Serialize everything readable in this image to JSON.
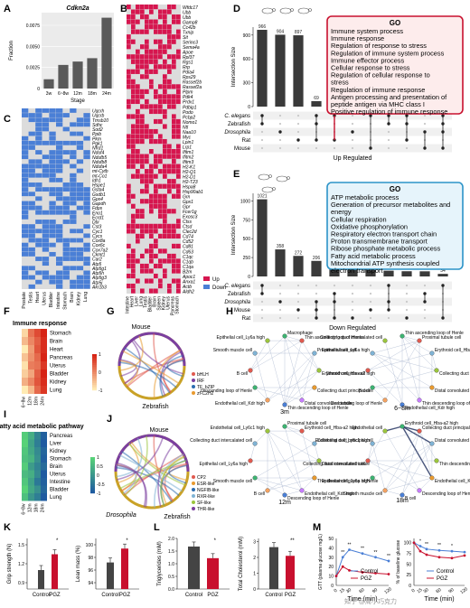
{
  "panel_labels": [
    "A",
    "B",
    "C",
    "D",
    "E",
    "F",
    "G",
    "H",
    "I",
    "J",
    "K",
    "L",
    "M"
  ],
  "panelA": {
    "chart_data": {
      "type": "bar",
      "title": "Cdkn2a",
      "categories": [
        "3w",
        "6~8w",
        "12m",
        "18m",
        "24m"
      ],
      "values": [
        0.0011,
        0.0028,
        0.0032,
        0.0036,
        0.0084
      ],
      "ylabel": "Fraction",
      "xlabel": "Stage",
      "ylim": [
        0,
        0.009
      ]
    },
    "yticks": [
      "0",
      "0.0025",
      "0.0050",
      "0.0075"
    ]
  },
  "panelB": {
    "genes": [
      "Wfdc17",
      "Ubb",
      "Ubb",
      "Gamp8",
      "Cc42b",
      "Txnip",
      "Sit",
      "Serinc3",
      "Sema4a",
      "Apoe",
      "Rpl37",
      "Rgs1",
      "Rrp",
      "Pdia4",
      "Rps29",
      "Rassef2b",
      "Rassef2a",
      "Plpm",
      "Pdk4",
      "Prdx1",
      "Pdbip1",
      "Podo",
      "Pcbp2",
      "Nomo1",
      "Ntl",
      "Naa10",
      "Myc",
      "Lpin1",
      "Lrp1",
      "Ifitm1",
      "Ifitm2",
      "Ifitm3",
      "H2-K1",
      "H2-Q1",
      "H2-D1",
      "H2-T23",
      "Hspa8",
      "Hsp90ab1",
      "Grn",
      "Gpx1",
      "Gpr",
      "Fcer1g",
      "Exosc3",
      "Ctss",
      "Ctsd",
      "Clec2d",
      "Cd74",
      "Cd52",
      "Cd81",
      "Cd63",
      "C1qc",
      "C1qb",
      "C1qa",
      "B2m",
      "Apoc1",
      "Anxa1",
      "Actb",
      "Aldh2"
    ],
    "samples": [
      "Intestine",
      "Heart",
      "Liver",
      "Lung",
      "Testis",
      "Bladder",
      "Brain",
      "Spleen",
      "Kidney",
      "Uterus",
      "Pancreas",
      "Stomach"
    ],
    "legend": [
      "Up",
      "Down"
    ]
  },
  "panelC": {
    "genes": [
      "Uqcrh",
      "Uqcrb",
      "Tmsb10",
      "Sdhc",
      "Sod2",
      "Ppib",
      "Pkm",
      "Pgk1",
      "Nfrd1",
      "Nduf4",
      "Ndufb5",
      "Ndufb8",
      "Ndufa4",
      "mt-Cytb",
      "mt-Co1",
      "Idh1",
      "Hspe1",
      "Gsta4",
      "Gsdb1",
      "Gpx4",
      "Gapdh",
      "Fdps",
      "Eno1",
      "Ecrd1",
      "Dbi",
      "Cst3",
      "Cyc1",
      "Cycs",
      "Cox8a",
      "Cox6c",
      "Cox7a2",
      "Ckmt1",
      "Car2",
      "Atp5",
      "Atp5g1",
      "Atp5h",
      "Atp5g3",
      "Atp5j",
      "Akr1b3"
    ],
    "samples": [
      "Prostate",
      "Testis",
      "Heart",
      "Uterus",
      "Bladder",
      "Intestine",
      "Stomach",
      "Brain",
      "Kidney",
      "Lung"
    ]
  },
  "panelD": {
    "chart_data": {
      "type": "bar",
      "categories": [
        "1",
        "2",
        "3",
        "4",
        "5",
        "6",
        "7",
        "8",
        "9",
        "10",
        "11"
      ],
      "values": [
        966,
        904,
        897,
        69,
        39,
        33,
        21,
        19,
        15,
        14,
        10
      ],
      "ylabel": "Intersection Size",
      "xlabel": "Up Regulated",
      "ylim": [
        0,
        1000
      ]
    },
    "value_labels": [
      "966",
      "904",
      "897",
      "69",
      "39",
      "33",
      "21",
      "19",
      "15",
      "14",
      "10"
    ],
    "yticks": [
      "0",
      "300",
      "600",
      "900"
    ],
    "sets": [
      "C. elegans",
      "Zebrafish",
      "Drosophila",
      "Rat",
      "Mouse"
    ],
    "go_title": "GO",
    "go_terms": [
      "Immune system process",
      "Immune response",
      "Regulation of response to stress",
      "Regulation of immune system process",
      "Immune effector process",
      "Cellular response to stress",
      "Regulation of cellular response to stress",
      "Regulation of immune response",
      "Antigen processing and presentation of peptide antigen via MHC class I",
      "Positive regulation of immune response"
    ]
  },
  "panelE": {
    "chart_data": {
      "type": "bar",
      "categories": [
        "1",
        "2",
        "3",
        "4",
        "5",
        "6",
        "7",
        "8",
        "9",
        "10",
        "11"
      ],
      "values": [
        1021,
        358,
        272,
        206,
        126,
        100,
        86,
        76,
        69,
        68,
        34
      ],
      "ylabel": "Intersection Size",
      "xlabel": "Down Regulated",
      "ylim": [
        0,
        1100
      ]
    },
    "value_labels": [
      "1021",
      "358",
      "272",
      "206",
      "126",
      "100",
      "86",
      "76",
      "69",
      "68",
      "34"
    ],
    "yticks": [
      "0",
      "250",
      "500",
      "750",
      "1000"
    ],
    "sets": [
      "C. elegans",
      "Zebrafish",
      "Drosophila",
      "Mouse",
      "Rat"
    ],
    "go_title": "GO",
    "go_terms": [
      "ATP metabolic process",
      "Generation of precursor metabolites and energy",
      "Cellular respiration",
      "Oxidative phosphorylation",
      "Respiratory electron transport chain",
      "Proton transmembrane transport",
      "Ribose phosphate metabolic process",
      "Fatty acid metabolic process",
      "Mitochondrial ATP synthesis coupled electron transport"
    ]
  },
  "panelF": {
    "title": "Immune response",
    "rows": [
      "Stomach",
      "Brain",
      "Heart",
      "Pancreas",
      "Uterus",
      "Bladder",
      "Kidney",
      "Lung"
    ],
    "cols": [
      "6~8w",
      "12m",
      "18m",
      "24m"
    ],
    "scale": [
      "1",
      "0",
      "-1"
    ],
    "chart_data": {
      "type": "heatmap",
      "rows": [
        "Stomach",
        "Brain",
        "Heart",
        "Pancreas",
        "Uterus",
        "Bladder",
        "Kidney",
        "Lung"
      ],
      "cols": [
        "6~8w",
        "12m",
        "18m",
        "24m"
      ],
      "values": [
        [
          -0.8,
          0.2,
          0.6,
          1.0
        ],
        [
          -0.5,
          0.0,
          0.4,
          0.9
        ],
        [
          -1.0,
          -0.2,
          0.5,
          0.9
        ],
        [
          -0.6,
          -0.1,
          0.3,
          1.0
        ],
        [
          -0.9,
          0.1,
          0.2,
          0.8
        ],
        [
          -0.7,
          -0.3,
          0.4,
          1.0
        ],
        [
          -0.4,
          0.0,
          0.5,
          0.9
        ],
        [
          -1.0,
          -0.5,
          0.3,
          0.8
        ]
      ]
    }
  },
  "panelG": {
    "organisms": [
      "Mouse",
      "Zebrafish"
    ],
    "legend": [
      "bHLH",
      "IRF",
      "TF_bZIP",
      "zf-C2H2"
    ],
    "legend_colors": [
      "#e05a4f",
      "#7b3fa0",
      "#2b6cb0",
      "#e89a2f"
    ]
  },
  "panelH": {
    "stages": [
      "3m",
      "6~8m",
      "12m",
      "18m"
    ],
    "nodes": [
      "Macrophage",
      "Thin ascending loop of Henle",
      "Proximal tubule cell",
      "Erythroid cell_Hba-a2 high",
      "Collecting duct principal cell",
      "Distal convoluted tubule",
      "Thin descending loop of Henle",
      "Endothelial cell_Kdr high",
      "Descending loop of Henle",
      "B cell",
      "Smooth muscle cell",
      "Epithelial cell_Ly6a high",
      "Collecting duct intercalated cell",
      "Endothelial cell_Ly6c1 high",
      "Endothelial cell"
    ]
  },
  "panelI": {
    "title": "Fatty acid metabolic pathway",
    "rows": [
      "Pancreas",
      "Liver",
      "Kidney",
      "Stomach",
      "Brain",
      "Uterus",
      "Intestine",
      "Bladder",
      "Lung"
    ],
    "cols": [
      "6~8w",
      "12m",
      "18m",
      "24m"
    ],
    "scale": [
      "1",
      "0.5",
      "0",
      "-0.5",
      "-1"
    ],
    "chart_data": {
      "type": "heatmap",
      "rows": [
        "Pancreas",
        "Liver",
        "Kidney",
        "Stomach",
        "Brain",
        "Uterus",
        "Intestine",
        "Bladder",
        "Lung"
      ],
      "cols": [
        "6~8w",
        "12m",
        "18m",
        "24m"
      ],
      "values": [
        [
          0.9,
          0.4,
          -0.3,
          -0.9
        ],
        [
          1.0,
          0.2,
          -0.4,
          -1.0
        ],
        [
          0.8,
          0.3,
          -0.2,
          -0.8
        ],
        [
          0.7,
          0.5,
          -0.1,
          -0.9
        ],
        [
          0.9,
          0.1,
          -0.3,
          -0.7
        ],
        [
          0.6,
          0.4,
          -0.2,
          -1.0
        ],
        [
          0.8,
          0.2,
          -0.5,
          -0.9
        ],
        [
          1.0,
          0.3,
          -0.1,
          -0.8
        ],
        [
          0.7,
          0.0,
          -0.4,
          -1.0
        ]
      ]
    }
  },
  "panelJ": {
    "organisms": [
      "Mouse",
      "Drosophila",
      "Zebrafish"
    ],
    "legend": [
      "CP2",
      "ESR-like",
      "NGFIB-like",
      "RXR-like",
      "SF-like",
      "THR-like"
    ],
    "legend_colors": [
      "#e05a4f",
      "#e89a2f",
      "#2b6cb0",
      "#7fb3d5",
      "#9bc53d",
      "#7b3fa0"
    ]
  },
  "panelK": {
    "charts": [
      {
        "type": "bar",
        "categories": [
          "Control",
          "PGZ"
        ],
        "values": [
          1.1,
          1.35
        ],
        "ylabel": "Grip strength (N)",
        "yticks": [
          "0.9",
          "1.2",
          "1.5"
        ],
        "ylim": [
          0.8,
          1.6
        ],
        "sig": "*"
      },
      {
        "type": "bar",
        "categories": [
          "Control",
          "PGZ"
        ],
        "values": [
          97.2,
          99.4
        ],
        "ylabel": "Lean mass (%)",
        "yticks": [
          "94",
          "96",
          "98",
          "100"
        ],
        "ylim": [
          93,
          101
        ],
        "sig": "*"
      }
    ]
  },
  "panelL": {
    "charts": [
      {
        "type": "bar",
        "categories": [
          "Control",
          "PGZ"
        ],
        "values": [
          1.68,
          1.22
        ],
        "ylabel": "Triglycerides (mM)",
        "yticks": [
          "0.0",
          "0.5",
          "1.0",
          "1.5",
          "2.0"
        ],
        "ylim": [
          0,
          2.0
        ],
        "sig": "*"
      },
      {
        "type": "bar",
        "categories": [
          "Control",
          "PGZ"
        ],
        "values": [
          2.65,
          2.1
        ],
        "ylabel": "Total Cholesterol (mM)",
        "yticks": [
          "0",
          "1",
          "2",
          "3"
        ],
        "ylim": [
          0,
          3.2
        ],
        "sig": "**"
      }
    ]
  },
  "panelM": {
    "charts": [
      {
        "type": "line",
        "xlabel": "Time (min)",
        "ylabel": "GTT (plasma glucose mg/L)",
        "x": [
          0,
          15,
          30,
          60,
          90,
          120
        ],
        "series": [
          {
            "name": "Control",
            "values": [
              10,
              30,
              38,
              34,
              30,
              26
            ]
          },
          {
            "name": "PGZ",
            "values": [
              10,
              20,
              16,
              14,
              13,
              12
            ]
          }
        ],
        "yticks": [
          "0",
          "10",
          "20",
          "30",
          "40",
          "50"
        ],
        "xticks": [
          "0",
          "15",
          "30",
          "60",
          "90",
          "120"
        ],
        "ylim": [
          0,
          50
        ],
        "sig": [
          "**",
          "**",
          "**",
          "**",
          "**"
        ]
      },
      {
        "type": "line",
        "xlabel": "Time (min)",
        "ylabel": "% of baseline glucose",
        "x": [
          0,
          15,
          30,
          60,
          90,
          120
        ],
        "series": [
          {
            "name": "Control",
            "values": [
              100,
              92,
              85,
              82,
              80,
              78
            ]
          },
          {
            "name": "PGZ",
            "values": [
              100,
              80,
              72,
              66,
              64,
              70
            ]
          }
        ],
        "yticks": [
          "0",
          "25",
          "50",
          "75",
          "100"
        ],
        "xticks": [
          "0",
          "15",
          "30",
          "60",
          "90",
          "120"
        ],
        "ylim": [
          0,
          110
        ],
        "sig": [
          "*",
          "**",
          "**",
          "*"
        ]
      }
    ]
  },
  "watermark": "知乎 @周小巧克力"
}
